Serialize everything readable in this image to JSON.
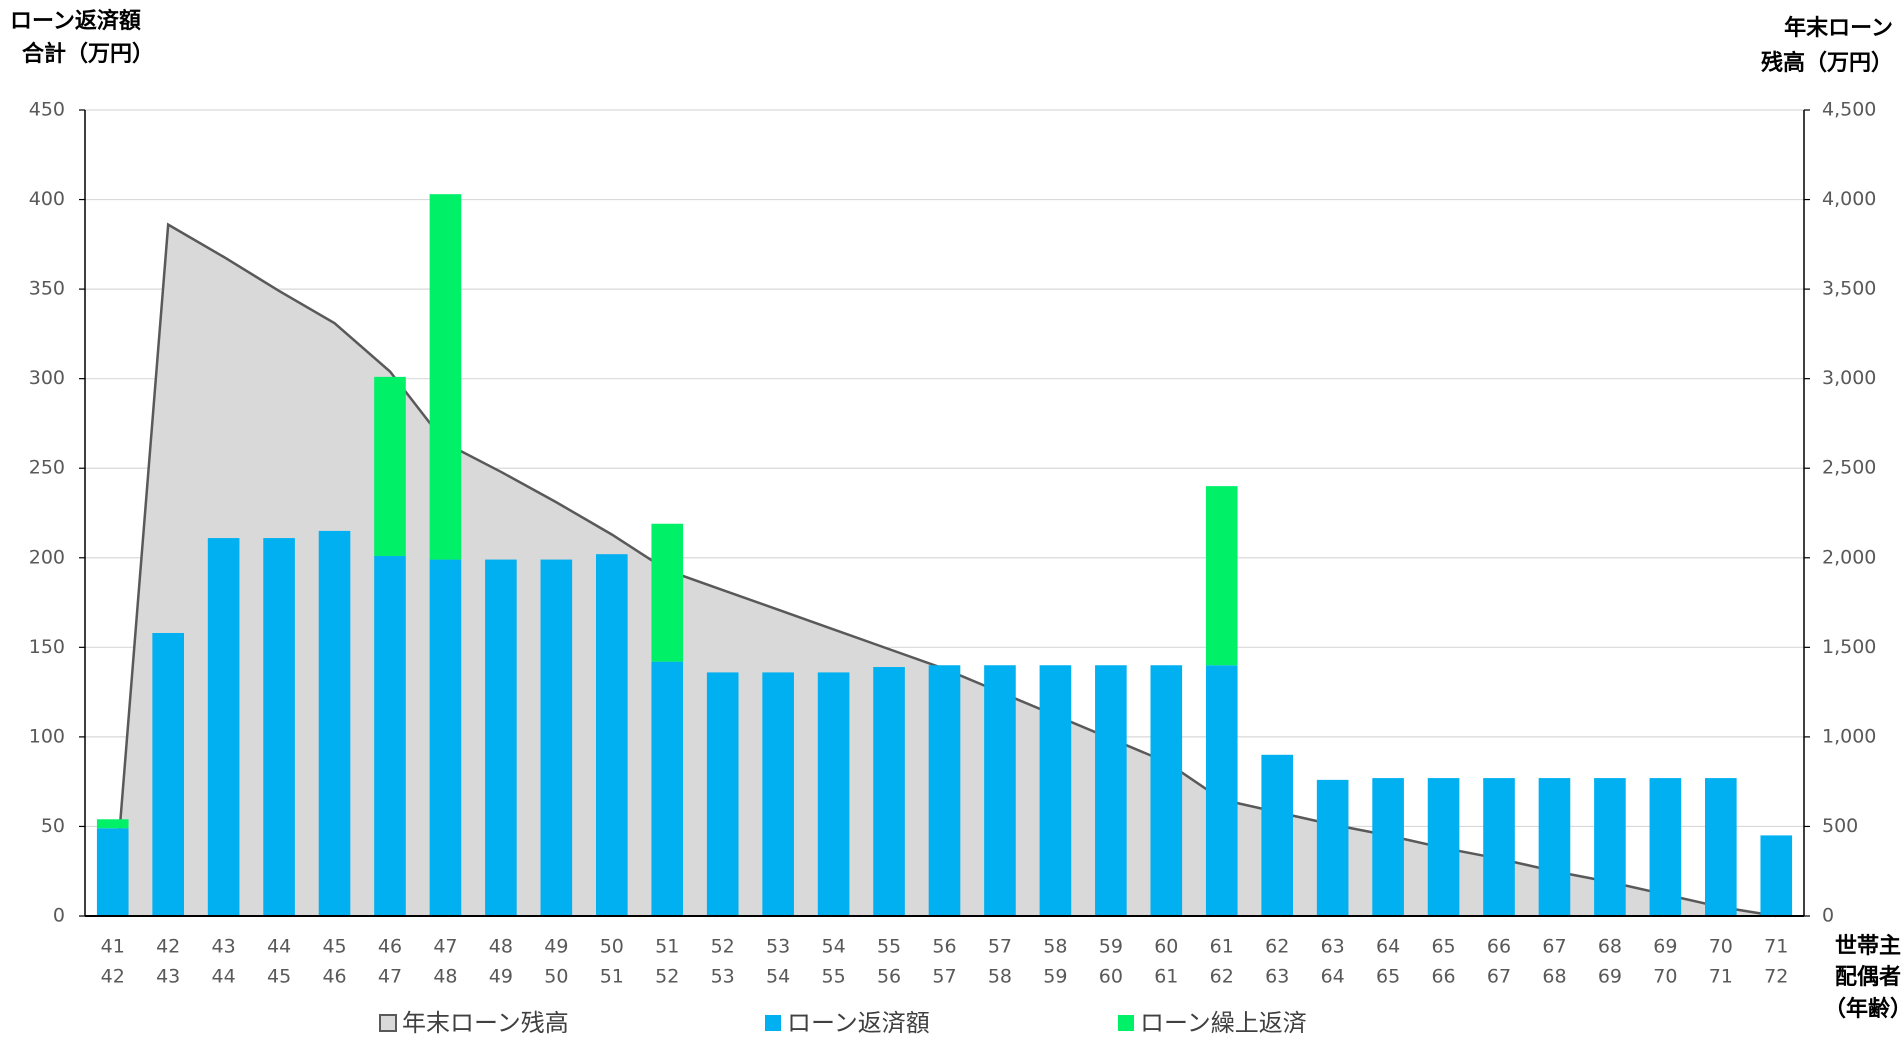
{
  "chart_data": {
    "type": "combo",
    "y_label": [
      "ローン返済額",
      "合計（万円）"
    ],
    "y2_label": [
      "年末ローン",
      "残高（万円）"
    ],
    "x_label": [
      "世帯主",
      "配偶者",
      "（年齢）"
    ],
    "categories": [
      "41",
      "42",
      "43",
      "44",
      "45",
      "46",
      "47",
      "48",
      "49",
      "50",
      "51",
      "52",
      "53",
      "54",
      "55",
      "56",
      "57",
      "58",
      "59",
      "60",
      "61",
      "62",
      "63",
      "64",
      "65",
      "66",
      "67",
      "68",
      "69",
      "70",
      "71"
    ],
    "categories2": [
      "42",
      "43",
      "44",
      "45",
      "46",
      "47",
      "48",
      "49",
      "50",
      "51",
      "52",
      "53",
      "54",
      "55",
      "56",
      "57",
      "58",
      "59",
      "60",
      "61",
      "62",
      "63",
      "64",
      "65",
      "66",
      "67",
      "68",
      "69",
      "70",
      "71",
      "72"
    ],
    "series": [
      {
        "name": "年末ローン残高",
        "type": "area",
        "axis": "y2",
        "color": "#d9d9d9",
        "line_color": "#595959",
        "values": [
          0,
          3860,
          3680,
          3490,
          3310,
          3040,
          2640,
          2480,
          2310,
          2130,
          1930,
          1820,
          1710,
          1600,
          1490,
          1380,
          1250,
          1120,
          990,
          860,
          650,
          580,
          510,
          450,
          380,
          320,
          250,
          190,
          120,
          50,
          0
        ]
      },
      {
        "name": "ローン返済額",
        "type": "bar",
        "color": "#00b0f0",
        "values": [
          49,
          158,
          211,
          211,
          215,
          201,
          199,
          199,
          199,
          202,
          142,
          136,
          136,
          136,
          139,
          140,
          140,
          140,
          140,
          140,
          140,
          90,
          76,
          77,
          77,
          77,
          77,
          77,
          77,
          77,
          45
        ]
      },
      {
        "name": "ローン繰上返済",
        "type": "bar",
        "color": "#00f068",
        "values": [
          5,
          null,
          null,
          null,
          null,
          100,
          204,
          null,
          null,
          null,
          77,
          null,
          null,
          null,
          null,
          null,
          null,
          null,
          null,
          null,
          100,
          null,
          null,
          null,
          null,
          null,
          null,
          null,
          null,
          null,
          null
        ]
      }
    ],
    "stacked": true,
    "ylim": [
      0,
      450
    ],
    "yticks": [
      0,
      50,
      100,
      150,
      200,
      250,
      300,
      350,
      400,
      450
    ],
    "y2lim": [
      0,
      4500
    ],
    "y2ticks": [
      0,
      {
        "value": 500,
        "label": "500"
      },
      {
        "value": 1000,
        "label": "1,000"
      },
      {
        "value": 1500,
        "label": "1,500"
      },
      {
        "value": 2000,
        "label": "2,000"
      },
      {
        "value": 2500,
        "label": "2,500"
      },
      {
        "value": 3000,
        "label": "3,000"
      },
      {
        "value": 3500,
        "label": "3,500"
      },
      {
        "value": 4000,
        "label": "4,000"
      },
      {
        "value": 4500,
        "label": "4,500"
      }
    ],
    "grid": true,
    "legend": "bottom"
  }
}
